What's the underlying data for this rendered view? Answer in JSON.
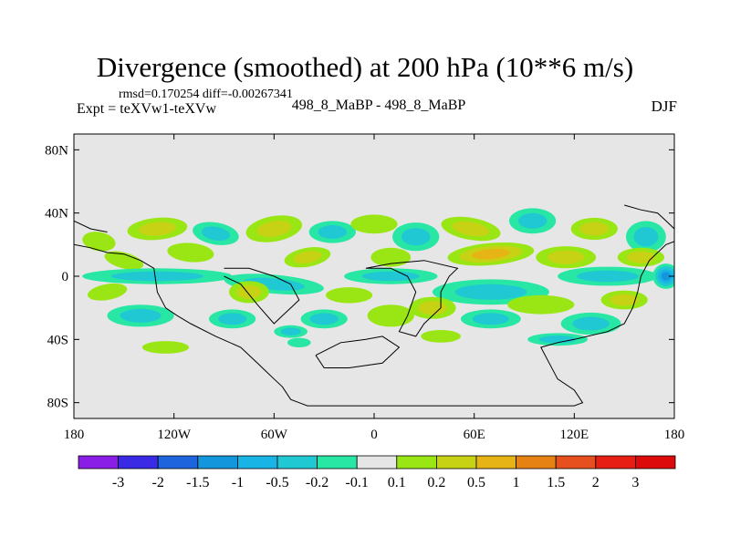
{
  "chart_data": {
    "type": "heatmap",
    "title": "Divergence (smoothed) at 200 hPa (10**6 m/s)",
    "stats": {
      "rmsd_label": "rmsd=",
      "rmsd": "0.170254",
      "diff_label": "diff=",
      "diff": "-0.00267341"
    },
    "left_label": "Expt = teXVw1-teXVw",
    "center_label": "498_8_MaBP - 498_8_MaBP",
    "right_label": "DJF",
    "x_axis": {
      "range": [
        -180,
        180
      ],
      "ticks": [
        -180,
        -120,
        -60,
        0,
        60,
        120,
        180
      ],
      "tick_labels": [
        "180",
        "120W",
        "60W",
        "0",
        "60E",
        "120E",
        "180"
      ]
    },
    "y_axis": {
      "range": [
        -90,
        90
      ],
      "ticks": [
        -80,
        -40,
        0,
        40,
        80
      ],
      "tick_labels": [
        "80S",
        "40S",
        "0",
        "40N",
        "80N"
      ]
    },
    "colorbar": {
      "levels": [
        "-3",
        "-2",
        "-1.5",
        "-1",
        "-0.5",
        "-0.2",
        "-0.1",
        "0.1",
        "0.2",
        "0.5",
        "1",
        "1.5",
        "2",
        "3"
      ],
      "colors": [
        "#8a1ee6",
        "#3a2ae6",
        "#1e64dc",
        "#1496dc",
        "#18b4e6",
        "#20c8d4",
        "#28e6a4",
        "#e6e6e6",
        "#9ae614",
        "#c8d214",
        "#e6b414",
        "#e68214",
        "#e6501e",
        "#e61e14",
        "#dc0a0a"
      ]
    },
    "background_color": "#e6e6e6",
    "features": [
      {
        "lon": -165,
        "lat": 22,
        "rx": 10,
        "ry": 6,
        "level": 8,
        "rot": 10
      },
      {
        "lon": -130,
        "lat": 30,
        "rx": 18,
        "ry": 7,
        "level": 9,
        "rot": -5
      },
      {
        "lon": -95,
        "lat": 27,
        "rx": 14,
        "ry": 7,
        "level": 5,
        "rot": 10
      },
      {
        "lon": -60,
        "lat": 30,
        "rx": 17,
        "ry": 8,
        "level": 9,
        "rot": -10
      },
      {
        "lon": -25,
        "lat": 28,
        "rx": 14,
        "ry": 7,
        "level": 5,
        "rot": 0
      },
      {
        "lon": 0,
        "lat": 33,
        "rx": 14,
        "ry": 6,
        "level": 8,
        "rot": 0
      },
      {
        "lon": 25,
        "lat": 25,
        "rx": 14,
        "ry": 9,
        "level": 5,
        "rot": 0
      },
      {
        "lon": 58,
        "lat": 30,
        "rx": 18,
        "ry": 7,
        "level": 9,
        "rot": 10
      },
      {
        "lon": 95,
        "lat": 35,
        "rx": 14,
        "ry": 8,
        "level": 5,
        "rot": 0
      },
      {
        "lon": 132,
        "lat": 30,
        "rx": 14,
        "ry": 7,
        "level": 9,
        "rot": 0
      },
      {
        "lon": 163,
        "lat": 25,
        "rx": 12,
        "ry": 10,
        "level": 5,
        "rot": 0
      },
      {
        "lon": -150,
        "lat": 10,
        "rx": 12,
        "ry": 5,
        "level": 8,
        "rot": 15
      },
      {
        "lon": -110,
        "lat": 15,
        "rx": 14,
        "ry": 6,
        "level": 8,
        "rot": 5
      },
      {
        "lon": -40,
        "lat": 12,
        "rx": 14,
        "ry": 6,
        "level": 9,
        "rot": -10
      },
      {
        "lon": 10,
        "lat": 12,
        "rx": 12,
        "ry": 6,
        "level": 8,
        "rot": 0
      },
      {
        "lon": 70,
        "lat": 14,
        "rx": 26,
        "ry": 7,
        "level": 10,
        "rot": -5
      },
      {
        "lon": 115,
        "lat": 12,
        "rx": 18,
        "ry": 7,
        "level": 9,
        "rot": 0
      },
      {
        "lon": 160,
        "lat": 12,
        "rx": 14,
        "ry": 6,
        "level": 9,
        "rot": 0
      },
      {
        "lon": -130,
        "lat": 0,
        "rx": 45,
        "ry": 5,
        "level": 5,
        "rot": 0
      },
      {
        "lon": -60,
        "lat": -5,
        "rx": 30,
        "ry": 6,
        "level": 5,
        "rot": 5
      },
      {
        "lon": 10,
        "lat": 0,
        "rx": 28,
        "ry": 5,
        "level": 5,
        "rot": 0
      },
      {
        "lon": 70,
        "lat": -10,
        "rx": 35,
        "ry": 8,
        "level": 5,
        "rot": 0
      },
      {
        "lon": 140,
        "lat": 0,
        "rx": 30,
        "ry": 6,
        "level": 5,
        "rot": 0
      },
      {
        "lon": 175,
        "lat": 0,
        "rx": 8,
        "ry": 8,
        "level": 3,
        "rot": 0
      },
      {
        "lon": -160,
        "lat": -10,
        "rx": 12,
        "ry": 5,
        "level": 8,
        "rot": -10
      },
      {
        "lon": -75,
        "lat": -10,
        "rx": 12,
        "ry": 7,
        "level": 9,
        "rot": 0
      },
      {
        "lon": -15,
        "lat": -12,
        "rx": 14,
        "ry": 5,
        "level": 8,
        "rot": 0
      },
      {
        "lon": 35,
        "lat": -20,
        "rx": 14,
        "ry": 7,
        "level": 9,
        "rot": 0
      },
      {
        "lon": 100,
        "lat": -18,
        "rx": 20,
        "ry": 6,
        "level": 8,
        "rot": 0
      },
      {
        "lon": 150,
        "lat": -15,
        "rx": 14,
        "ry": 6,
        "level": 9,
        "rot": 0
      },
      {
        "lon": -140,
        "lat": -25,
        "rx": 20,
        "ry": 7,
        "level": 5,
        "rot": 0
      },
      {
        "lon": -85,
        "lat": -27,
        "rx": 14,
        "ry": 6,
        "level": 5,
        "rot": 0
      },
      {
        "lon": -30,
        "lat": -27,
        "rx": 14,
        "ry": 6,
        "level": 5,
        "rot": 0
      },
      {
        "lon": 10,
        "lat": -25,
        "rx": 14,
        "ry": 7,
        "level": 8,
        "rot": 0
      },
      {
        "lon": 70,
        "lat": -27,
        "rx": 18,
        "ry": 6,
        "level": 5,
        "rot": 0
      },
      {
        "lon": 130,
        "lat": -30,
        "rx": 18,
        "ry": 7,
        "level": 5,
        "rot": 0
      },
      {
        "lon": -125,
        "lat": -45,
        "rx": 14,
        "ry": 4,
        "level": 8,
        "rot": 0
      },
      {
        "lon": -50,
        "lat": -35,
        "rx": 10,
        "ry": 4,
        "level": 5,
        "rot": 0
      },
      {
        "lon": 40,
        "lat": -38,
        "rx": 12,
        "ry": 4,
        "level": 8,
        "rot": 0
      },
      {
        "lon": 110,
        "lat": -40,
        "rx": 18,
        "ry": 4,
        "level": 5,
        "rot": 0
      },
      {
        "lon": -45,
        "lat": -42,
        "rx": 7,
        "ry": 3,
        "level": 6,
        "rot": 0
      }
    ],
    "coastlines": [
      [
        [
          -180,
          20
        ],
        [
          -170,
          18
        ],
        [
          -160,
          15
        ],
        [
          -150,
          14
        ],
        [
          -140,
          10
        ],
        [
          -132,
          5
        ],
        [
          -130,
          -10
        ],
        [
          -125,
          -20
        ],
        [
          -118,
          -25
        ],
        [
          -110,
          -30
        ],
        [
          -95,
          -38
        ],
        [
          -80,
          -45
        ],
        [
          -70,
          -55
        ],
        [
          -65,
          -60
        ],
        [
          -60,
          -65
        ],
        [
          -55,
          -70
        ],
        [
          -50,
          -78
        ],
        [
          -45,
          -80
        ],
        [
          -40,
          -82
        ],
        [
          0,
          -82
        ],
        [
          60,
          -82
        ],
        [
          100,
          -82
        ],
        [
          120,
          -82
        ],
        [
          125,
          -80
        ],
        [
          120,
          -72
        ],
        [
          110,
          -65
        ],
        [
          105,
          -55
        ],
        [
          100,
          -45
        ],
        [
          110,
          -42
        ],
        [
          120,
          -40
        ],
        [
          140,
          -35
        ],
        [
          150,
          -30
        ],
        [
          155,
          -20
        ],
        [
          158,
          -10
        ],
        [
          160,
          0
        ],
        [
          165,
          10
        ],
        [
          175,
          20
        ],
        [
          180,
          22
        ]
      ],
      [
        [
          -90,
          0
        ],
        [
          -80,
          -5
        ],
        [
          -70,
          -18
        ],
        [
          -60,
          -30
        ],
        [
          -55,
          -25
        ],
        [
          -50,
          -20
        ],
        [
          -45,
          -15
        ],
        [
          -50,
          -5
        ],
        [
          -60,
          0
        ],
        [
          -75,
          5
        ],
        [
          -90,
          5
        ]
      ],
      [
        [
          -5,
          5
        ],
        [
          10,
          5
        ],
        [
          20,
          0
        ],
        [
          25,
          -10
        ],
        [
          20,
          -25
        ],
        [
          15,
          -35
        ],
        [
          25,
          -38
        ],
        [
          30,
          -30
        ],
        [
          40,
          -20
        ],
        [
          40,
          -10
        ],
        [
          45,
          0
        ],
        [
          50,
          5
        ],
        [
          30,
          10
        ],
        [
          10,
          8
        ],
        [
          -5,
          5
        ]
      ],
      [
        [
          -35,
          -50
        ],
        [
          -20,
          -42
        ],
        [
          -5,
          -40
        ],
        [
          5,
          -38
        ],
        [
          15,
          -45
        ],
        [
          5,
          -55
        ],
        [
          -15,
          -58
        ],
        [
          -30,
          -58
        ],
        [
          -35,
          -50
        ]
      ],
      [
        [
          150,
          45
        ],
        [
          160,
          42
        ],
        [
          170,
          40
        ],
        [
          175,
          35
        ],
        [
          180,
          30
        ]
      ],
      [
        [
          -180,
          35
        ],
        [
          -170,
          30
        ],
        [
          -160,
          28
        ]
      ]
    ]
  }
}
